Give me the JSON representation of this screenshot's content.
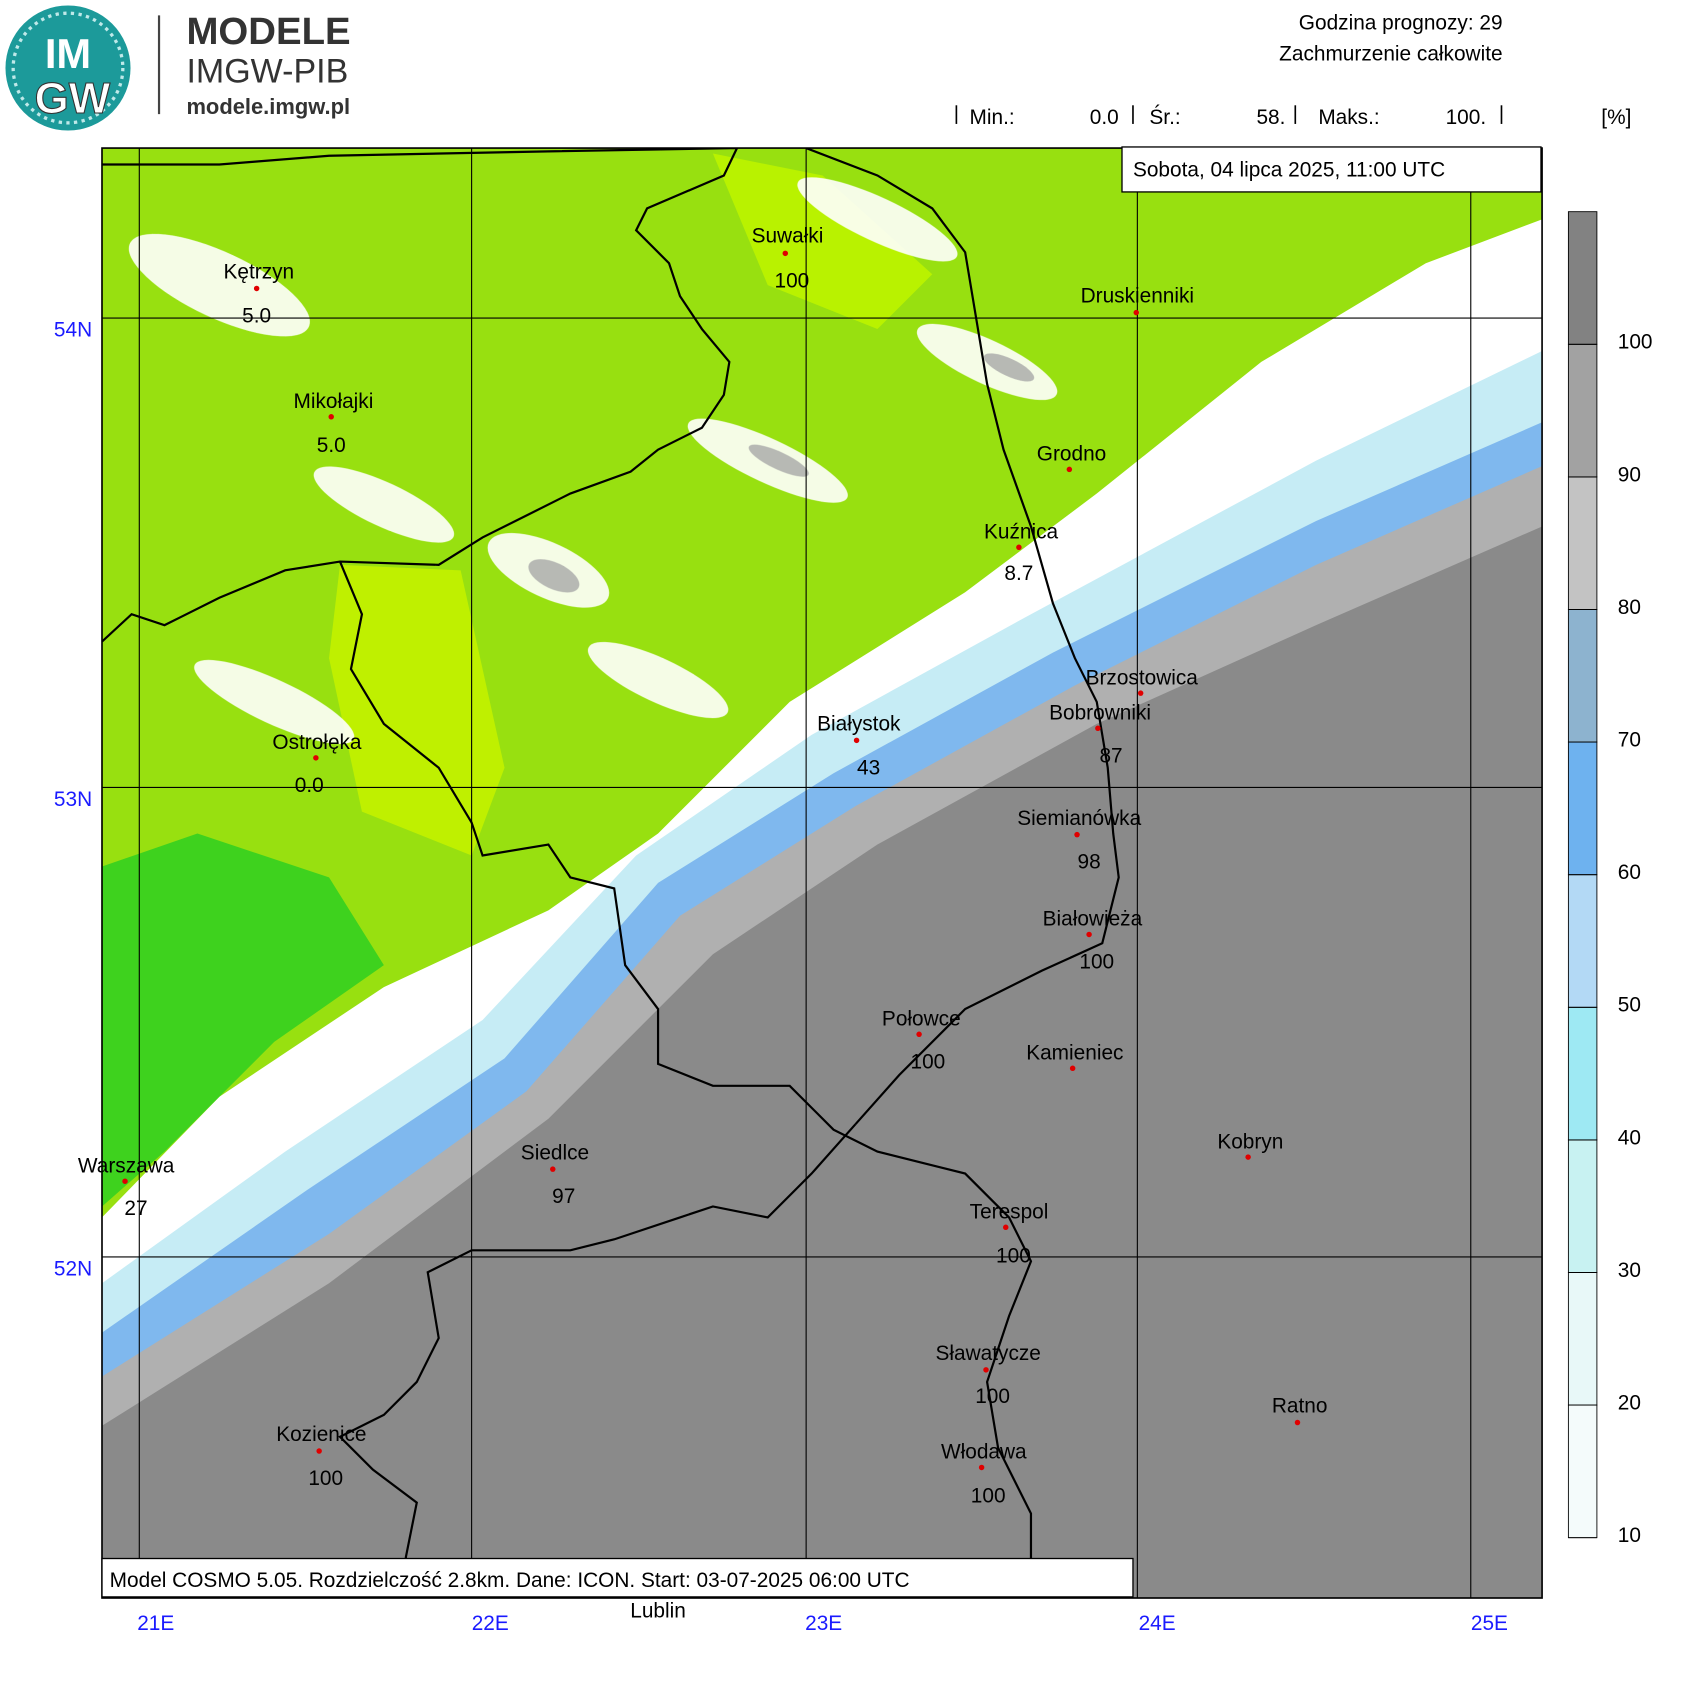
{
  "header": {
    "logo": [
      "IM",
      "GW"
    ],
    "brand": "MODELE",
    "org": "IMGW-PIB",
    "url": "modele.imgw.pl"
  },
  "info": {
    "forecast_hour": "Godzina prognozy: 29",
    "field": "Zachmurzenie całkowite",
    "stats": [
      {
        "label": "Min.:",
        "value": "0.0"
      },
      {
        "label": "Śr.:",
        "value": "58."
      },
      {
        "label": "Maks.:",
        "value": "100."
      }
    ],
    "unit": "[%]",
    "date": "Sobota, 04 lipca 2025, 11:00 UTC"
  },
  "footer": "Model COSMO 5.05. Rozdzielczość 2.8km. Dane: ICON. Start: 03-07-2025 06:00 UTC",
  "lat_labels": [
    "54N",
    "53N",
    "52N"
  ],
  "lon_labels": [
    "21E",
    "22E",
    "23E",
    "24E",
    "25E"
  ],
  "legend": {
    "ticks": [
      10,
      20,
      30,
      40,
      50,
      60,
      70,
      80,
      90,
      100
    ],
    "colors": [
      "#f4fbfb",
      "#e8f8f8",
      "#c8f2f2",
      "#9ee9f3",
      "#b3d9f5",
      "#6eb2ef",
      "#8db3cf",
      "#c3c3c3",
      "#a2a2a2",
      "#828282"
    ]
  },
  "cities": [
    {
      "name": "Kętrzyn",
      "value": "5.0"
    },
    {
      "name": "Mikołajki",
      "value": "5.0"
    },
    {
      "name": "Suwałki",
      "value": "100"
    },
    {
      "name": "Druskienniki"
    },
    {
      "name": "Grodno"
    },
    {
      "name": "Kuźnica",
      "value": "8.7"
    },
    {
      "name": "Ostrołęka",
      "value": "0.0"
    },
    {
      "name": "Białystok",
      "value": "43"
    },
    {
      "name": "Brzostowica"
    },
    {
      "name": "Bobrowniki",
      "value": "87"
    },
    {
      "name": "Siemianówka",
      "value": "98"
    },
    {
      "name": "Białowieża",
      "value": "100"
    },
    {
      "name": "Połowce",
      "value": "100"
    },
    {
      "name": "Kamieniec"
    },
    {
      "name": "Kobryn"
    },
    {
      "name": "Warszawa",
      "value": "27"
    },
    {
      "name": "Siedlce",
      "value": "97"
    },
    {
      "name": "Terespol",
      "value": "100"
    },
    {
      "name": "Sławatycze",
      "value": "100"
    },
    {
      "name": "Ratno"
    },
    {
      "name": "Kozienice",
      "value": "100"
    },
    {
      "name": "Włodawa",
      "value": "100"
    }
  ],
  "extra_label": "Lublin"
}
